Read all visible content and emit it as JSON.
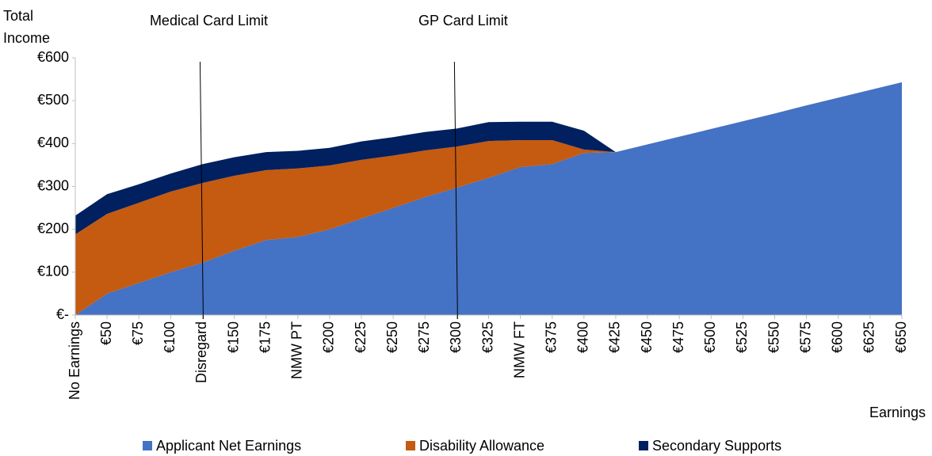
{
  "chart_data": {
    "type": "stacked_area",
    "y_label": "Total Income",
    "x_label": "Earnings",
    "categories": [
      "No Earnings",
      "€50",
      "€75",
      "€100",
      "Disregard",
      "€150",
      "€175",
      "NMW PT",
      "€200",
      "€225",
      "€250",
      "€275",
      "€300",
      "€325",
      "NMW FT",
      "€375",
      "€400",
      "€425",
      "€450",
      "€475",
      "€500",
      "€525",
      "€550",
      "€575",
      "€600",
      "€625",
      "€650"
    ],
    "series": [
      {
        "name": "Applicant Net Earnings",
        "color": "#4472c4",
        "values": [
          0,
          50,
          75,
          100,
          122,
          150,
          175,
          182,
          200,
          225,
          250,
          275,
          297,
          320,
          345,
          352,
          378,
          380,
          398,
          416,
          434,
          452,
          470,
          489,
          507,
          525,
          543
        ]
      },
      {
        "name": "Disability Allowance",
        "color": "#c55a11",
        "values": [
          188,
          186,
          187,
          188,
          186,
          175,
          163,
          160,
          149,
          137,
          122,
          109,
          96,
          86,
          63,
          56,
          8,
          0,
          0,
          0,
          0,
          0,
          0,
          0,
          0,
          0,
          0
        ]
      },
      {
        "name": "Secondary Supports",
        "color": "#002060",
        "values": [
          44,
          46,
          43,
          42,
          44,
          43,
          42,
          41,
          41,
          43,
          43,
          43,
          42,
          44,
          43,
          43,
          44,
          0,
          0,
          0,
          0,
          0,
          0,
          0,
          0,
          0,
          0
        ]
      }
    ],
    "ylim": [
      0,
      600
    ],
    "yticks": [
      {
        "value": 0,
        "label": "€-"
      },
      {
        "value": 100,
        "label": "€100"
      },
      {
        "value": 200,
        "label": "€200"
      },
      {
        "value": 300,
        "label": "€300"
      },
      {
        "value": 400,
        "label": "€400"
      },
      {
        "value": 500,
        "label": "€500"
      },
      {
        "value": 600,
        "label": "€600"
      }
    ],
    "annotations": [
      {
        "text": "Medical Card Limit",
        "category": "Disregard"
      },
      {
        "text": "GP Card Limit",
        "category": "€300"
      }
    ],
    "legend": "bottom"
  }
}
